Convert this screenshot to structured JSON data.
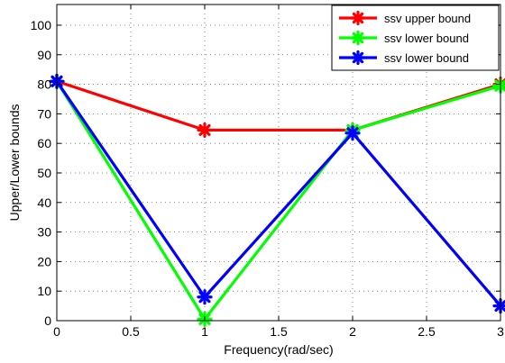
{
  "chart_data": {
    "type": "line",
    "xlabel": "Frequency(rad/sec)",
    "ylabel": "Upper/Lower bounds",
    "xlim": [
      0,
      3
    ],
    "ylim": [
      0,
      107
    ],
    "xticks": [
      0,
      0.5,
      1,
      1.5,
      2,
      2.5,
      3
    ],
    "xtick_labels": [
      "0",
      "0.5",
      "1",
      "1.5",
      "2",
      "2.5",
      "3"
    ],
    "yticks": [
      0,
      10,
      20,
      30,
      40,
      50,
      60,
      70,
      80,
      90,
      100
    ],
    "ytick_labels": [
      "0",
      "10",
      "20",
      "30",
      "40",
      "50",
      "60",
      "70",
      "80",
      "90",
      "100"
    ],
    "grid": true,
    "legend_position": "top-right",
    "marker": "asterisk",
    "series": [
      {
        "name": "ssv upper bound",
        "color": "#ff0000",
        "x": [
          0,
          1,
          2,
          3
        ],
        "y": [
          81,
          64.5,
          64.5,
          80
        ]
      },
      {
        "name": "ssv lower bound",
        "color": "#00ff00",
        "x": [
          0,
          1,
          2,
          3
        ],
        "y": [
          81,
          0.5,
          64.5,
          79.5
        ]
      },
      {
        "name": "ssv lower bound",
        "color": "#0000ff",
        "x": [
          0,
          1,
          2,
          3
        ],
        "y": [
          81,
          8,
          63.5,
          5
        ]
      }
    ]
  }
}
